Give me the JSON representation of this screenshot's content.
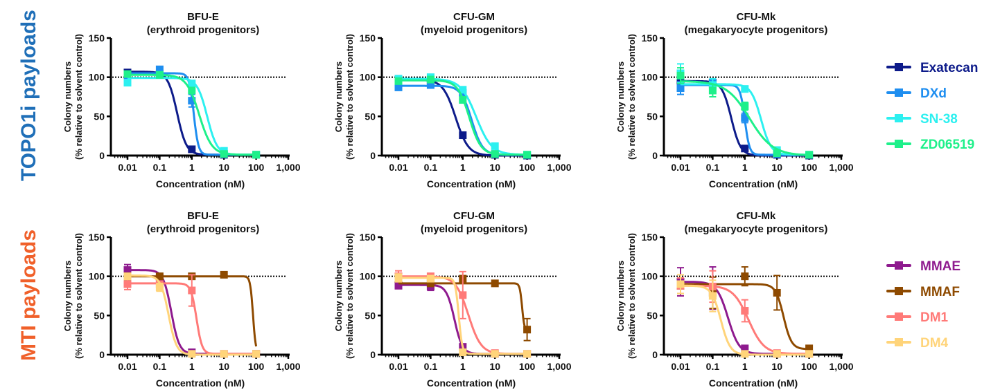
{
  "rows": [
    {
      "label": "TOPO1i payloads",
      "label_color": "#1f6fb8",
      "legend": [
        {
          "name": "Exatecan",
          "color": "#0d1b8a"
        },
        {
          "name": "DXd",
          "color": "#1e8ef0"
        },
        {
          "name": "SN-38",
          "color": "#2cf0f0"
        },
        {
          "name": "ZD06519",
          "color": "#1ef08a"
        }
      ]
    },
    {
      "label": "MTI payloads",
      "label_color": "#f0602a",
      "legend": [
        {
          "name": "MMAE",
          "color": "#8e1a8e"
        },
        {
          "name": "MMAF",
          "color": "#8e4a00"
        },
        {
          "name": "DM1",
          "color": "#ff7a78"
        },
        {
          "name": "DM4",
          "color": "#ffd47a"
        }
      ]
    }
  ],
  "chart_data": [
    {
      "type": "line",
      "row": 0,
      "title": "BFU-E",
      "subtitle": "(erythroid progenitors)",
      "xlabel": "Concentration (nM)",
      "ylabel": "Colony numbers",
      "ylabel2": "(% relative to solvent control)",
      "xscale": "log",
      "xlim": [
        0.005,
        1000
      ],
      "ylim": [
        0,
        150
      ],
      "xticks": [
        0.01,
        0.1,
        1,
        10,
        100,
        1000
      ],
      "xtick_labels": [
        "0.01",
        "0.1",
        "1",
        "10",
        "100",
        "1,000"
      ],
      "yticks": [
        0,
        50,
        100,
        150
      ],
      "ytick_labels": [
        "0",
        "50",
        "100",
        "150"
      ],
      "reference_line": 100,
      "x": [
        0.01,
        0.1,
        1,
        10,
        100
      ],
      "series": [
        {
          "name": "Exatecan",
          "values": [
            106,
            104,
            8,
            1,
            1
          ],
          "errors": [
            2,
            2,
            1,
            0,
            0
          ],
          "fit": {
            "top": 107,
            "bottom": 1,
            "ic50": 0.35,
            "hill": 3.0
          }
        },
        {
          "name": "DXd",
          "values": [
            100,
            110,
            70,
            2,
            1
          ],
          "errors": [
            3,
            3,
            8,
            0,
            0
          ],
          "fit": {
            "top": 105,
            "bottom": 1,
            "ic50": 1.15,
            "hill": 6.0
          }
        },
        {
          "name": "SN-38",
          "values": [
            93,
            103,
            92,
            6,
            1
          ],
          "errors": [
            3,
            2,
            2,
            1,
            0
          ],
          "fit": {
            "top": 99,
            "bottom": 1,
            "ic50": 3.0,
            "hill": 2.8
          }
        },
        {
          "name": "ZD06519",
          "values": [
            104,
            103,
            83,
            2,
            1
          ],
          "errors": [
            3,
            2,
            3,
            0,
            0
          ],
          "fit": {
            "top": 103,
            "bottom": 1,
            "ic50": 1.7,
            "hill": 2.2
          }
        }
      ]
    },
    {
      "type": "line",
      "row": 0,
      "title": "CFU-GM",
      "subtitle": "(myeloid progenitors)",
      "xlabel": "Concentration (nM)",
      "ylabel": "Colony numbers",
      "ylabel2": "(% relative to solvent control)",
      "xscale": "log",
      "xlim": [
        0.005,
        1000
      ],
      "ylim": [
        0,
        150
      ],
      "xticks": [
        0.01,
        0.1,
        1,
        10,
        100,
        1000
      ],
      "xtick_labels": [
        "0.01",
        "0.1",
        "1",
        "10",
        "100",
        "1,000"
      ],
      "yticks": [
        0,
        50,
        100,
        150
      ],
      "ytick_labels": [
        "0",
        "50",
        "100",
        "150"
      ],
      "reference_line": 100,
      "x": [
        0.01,
        0.1,
        1,
        10,
        100
      ],
      "series": [
        {
          "name": "Exatecan",
          "values": [
            98,
            93,
            26,
            1,
            0
          ],
          "errors": [
            2,
            2,
            2,
            0,
            0
          ],
          "fit": {
            "top": 97,
            "bottom": 0,
            "ic50": 0.6,
            "hill": 2.2
          }
        },
        {
          "name": "DXd",
          "values": [
            87,
            90,
            80,
            2,
            1
          ],
          "errors": [
            2,
            2,
            2,
            0,
            0
          ],
          "fit": {
            "top": 89,
            "bottom": 1,
            "ic50": 1.9,
            "hill": 2.6
          }
        },
        {
          "name": "SN-38",
          "values": [
            98,
            100,
            84,
            12,
            1
          ],
          "errors": [
            2,
            2,
            2,
            1,
            0
          ],
          "fit": {
            "top": 98,
            "bottom": 1,
            "ic50": 2.6,
            "hill": 1.8
          }
        },
        {
          "name": "ZD06519",
          "values": [
            95,
            97,
            71,
            2,
            1
          ],
          "errors": [
            2,
            2,
            3,
            0,
            0
          ],
          "fit": {
            "top": 96,
            "bottom": 1,
            "ic50": 1.6,
            "hill": 2.4
          }
        }
      ]
    },
    {
      "type": "line",
      "row": 0,
      "title": "CFU-Mk",
      "subtitle": "(megakaryocyte progenitors)",
      "xlabel": "Concentration (nM)",
      "ylabel": "Colony numbers",
      "ylabel2": "(% relative to solvent control)",
      "xscale": "log",
      "xlim": [
        0.005,
        1000
      ],
      "ylim": [
        0,
        150
      ],
      "xticks": [
        0.01,
        0.1,
        1,
        10,
        100,
        1000
      ],
      "xtick_labels": [
        "0.01",
        "0.1",
        "1",
        "10",
        "100",
        "1,000"
      ],
      "yticks": [
        0,
        50,
        100,
        150
      ],
      "ytick_labels": [
        "0",
        "50",
        "100",
        "150"
      ],
      "reference_line": 100,
      "x": [
        0.01,
        0.1,
        1,
        10,
        100
      ],
      "series": [
        {
          "name": "Exatecan",
          "values": [
            94,
            93,
            9,
            1,
            0
          ],
          "errors": [
            5,
            4,
            1,
            0,
            0
          ],
          "fit": {
            "top": 95,
            "bottom": 0,
            "ic50": 0.38,
            "hill": 3.0
          }
        },
        {
          "name": "DXd",
          "values": [
            86,
            92,
            48,
            2,
            1
          ],
          "errors": [
            8,
            5,
            6,
            0,
            0
          ],
          "fit": {
            "top": 90,
            "bottom": 1,
            "ic50": 1.0,
            "hill": 6.0
          }
        },
        {
          "name": "SN-38",
          "values": [
            105,
            90,
            85,
            7,
            1
          ],
          "errors": [
            12,
            8,
            2,
            1,
            0
          ],
          "fit": {
            "top": 91,
            "bottom": 1,
            "ic50": 3.2,
            "hill": 2.8
          }
        },
        {
          "name": "ZD06519",
          "values": [
            102,
            83,
            63,
            3,
            1
          ],
          "errors": [
            10,
            8,
            5,
            1,
            0
          ],
          "fit": {
            "top": 95,
            "bottom": 0,
            "ic50": 1.4,
            "hill": 1.2
          }
        }
      ]
    },
    {
      "type": "line",
      "row": 1,
      "title": "BFU-E",
      "subtitle": "(erythroid progenitors)",
      "xlabel": "Concentration (nM)",
      "ylabel": "Colony numbers",
      "ylabel2": "(% relative to solvent control)",
      "xscale": "log",
      "xlim": [
        0.005,
        1000
      ],
      "ylim": [
        0,
        150
      ],
      "xticks": [
        0.01,
        0.1,
        1,
        10,
        100,
        1000
      ],
      "xtick_labels": [
        "0.01",
        "0.1",
        "1",
        "10",
        "100",
        "1,000"
      ],
      "yticks": [
        0,
        50,
        100,
        150
      ],
      "ytick_labels": [
        "0",
        "50",
        "100",
        "150"
      ],
      "reference_line": 100,
      "x": [
        0.01,
        0.1,
        1,
        10,
        100
      ],
      "series": [
        {
          "name": "MMAE",
          "values": [
            108,
            98,
            3,
            1,
            1
          ],
          "errors": [
            7,
            5,
            1,
            0,
            0
          ],
          "fit": {
            "top": 108,
            "bottom": 1,
            "ic50": 0.23,
            "hill": 3.5
          }
        },
        {
          "name": "MMAF",
          "values": [
            100,
            100,
            100,
            102,
            1
          ],
          "errors": [
            4,
            2,
            2,
            1,
            0
          ],
          "fit": {
            "top": 100,
            "bottom": 1,
            "ic50": 80,
            "hill": 10
          }
        },
        {
          "name": "DM1",
          "values": [
            90,
            90,
            82,
            1,
            1
          ],
          "errors": [
            7,
            3,
            20,
            0,
            0
          ],
          "fit": {
            "top": 91,
            "bottom": 1,
            "ic50": 1.4,
            "hill": 5.0
          }
        },
        {
          "name": "DM4",
          "values": [
            100,
            86,
            1,
            1,
            1
          ],
          "errors": [
            3,
            5,
            0,
            0,
            0
          ],
          "fit": {
            "top": 101,
            "bottom": 0,
            "ic50": 0.19,
            "hill": 3.5
          }
        }
      ]
    },
    {
      "type": "line",
      "row": 1,
      "title": "CFU-GM",
      "subtitle": "(myeloid progenitors)",
      "xlabel": "Concentration (nM)",
      "ylabel": "Colony numbers",
      "ylabel2": "(% relative to solvent control)",
      "xscale": "log",
      "xlim": [
        0.005,
        1000
      ],
      "ylim": [
        0,
        150
      ],
      "xticks": [
        0.01,
        0.1,
        1,
        10,
        100,
        1000
      ],
      "xtick_labels": [
        "0.01",
        "0.1",
        "1",
        "10",
        "100",
        "1,000"
      ],
      "yticks": [
        0,
        50,
        100,
        150
      ],
      "ytick_labels": [
        "0",
        "50",
        "100",
        "150"
      ],
      "reference_line": 100,
      "x": [
        0.01,
        0.1,
        1,
        10,
        100
      ],
      "series": [
        {
          "name": "MMAE",
          "values": [
            88,
            87,
            10,
            1,
            1
          ],
          "errors": [
            2,
            5,
            2,
            0,
            0
          ],
          "fit": {
            "top": 89,
            "bottom": 1,
            "ic50": 0.55,
            "hill": 3.5
          }
        },
        {
          "name": "MMAF",
          "values": [
            97,
            91,
            97,
            91,
            32
          ],
          "errors": [
            3,
            2,
            3,
            2,
            14
          ],
          "fit": {
            "top": 91,
            "bottom": 30,
            "ic50": 70,
            "hill": 12
          }
        },
        {
          "name": "DM1",
          "values": [
            100,
            100,
            76,
            2,
            1
          ],
          "errors": [
            7,
            3,
            30,
            0,
            0
          ],
          "fit": {
            "top": 100,
            "bottom": 1,
            "ic50": 1.5,
            "hill": 2.2
          }
        },
        {
          "name": "DM4",
          "values": [
            98,
            97,
            3,
            1,
            1
          ],
          "errors": [
            5,
            3,
            1,
            0,
            0
          ],
          "fit": {
            "top": 98,
            "bottom": 1,
            "ic50": 0.75,
            "hill": 8.0
          }
        }
      ]
    },
    {
      "type": "line",
      "row": 1,
      "title": "CFU-Mk",
      "subtitle": "(megakaryocyte progenitors)",
      "xlabel": "Concentration (nM)",
      "ylabel": "Colony numbers",
      "ylabel2": "(% relative to solvent control)",
      "xscale": "log",
      "xlim": [
        0.005,
        1000
      ],
      "ylim": [
        0,
        150
      ],
      "xticks": [
        0.01,
        0.1,
        1,
        10,
        100,
        1000
      ],
      "xtick_labels": [
        "0.01",
        "0.1",
        "1",
        "10",
        "100",
        "1,000"
      ],
      "yticks": [
        0,
        50,
        100,
        150
      ],
      "ytick_labels": [
        "0",
        "50",
        "100",
        "150"
      ],
      "reference_line": 100,
      "x": [
        0.01,
        0.1,
        1,
        10,
        100
      ],
      "series": [
        {
          "name": "MMAE",
          "values": [
            93,
            85,
            8,
            1,
            1
          ],
          "errors": [
            18,
            27,
            1,
            0,
            0
          ],
          "fit": {
            "top": 93,
            "bottom": 1,
            "ic50": 0.3,
            "hill": 2.5
          }
        },
        {
          "name": "MMAF",
          "values": [
            88,
            79,
            100,
            79,
            8
          ],
          "errors": [
            10,
            20,
            12,
            22,
            2
          ],
          "fit": {
            "top": 90,
            "bottom": 7,
            "ic50": 16,
            "hill": 3.5
          }
        },
        {
          "name": "DM1",
          "values": [
            88,
            87,
            56,
            2,
            1
          ],
          "errors": [
            10,
            20,
            14,
            0,
            0
          ],
          "fit": {
            "top": 88,
            "bottom": 1,
            "ic50": 1.3,
            "hill": 1.8
          }
        },
        {
          "name": "DM4",
          "values": [
            90,
            75,
            1,
            1,
            1
          ],
          "errors": [
            12,
            20,
            0,
            0,
            0
          ],
          "fit": {
            "top": 88,
            "bottom": 0,
            "ic50": 0.18,
            "hill": 3.0
          }
        }
      ]
    }
  ]
}
